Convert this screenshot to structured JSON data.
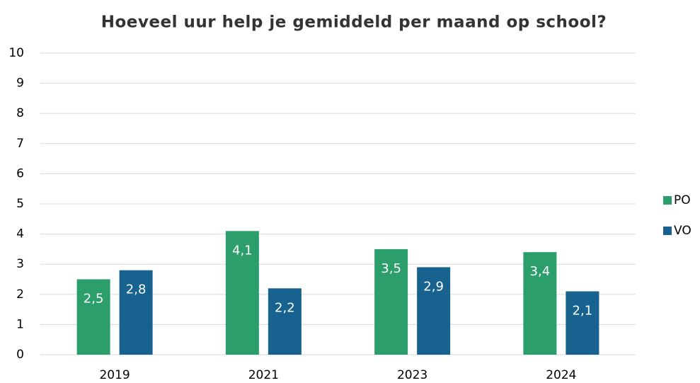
{
  "chart_data": {
    "type": "bar",
    "title": "Hoeveel uur help je gemiddeld per maand op school?",
    "categories": [
      "2019",
      "2021",
      "2023",
      "2024"
    ],
    "series": [
      {
        "name": "PO",
        "color": "#2b9e6b",
        "values": [
          2.5,
          4.1,
          3.5,
          3.4
        ],
        "value_labels": [
          "2,5",
          "4,1",
          "3,5",
          "3,4"
        ]
      },
      {
        "name": "VO",
        "color": "#18628f",
        "values": [
          2.8,
          2.2,
          2.9,
          2.1
        ],
        "value_labels": [
          "2,8",
          "2,2",
          "2,9",
          "2,1"
        ]
      }
    ],
    "ylim": [
      0,
      10
    ],
    "yticks": [
      0,
      1,
      2,
      3,
      4,
      5,
      6,
      7,
      8,
      9,
      10
    ],
    "grid": true,
    "legend": "right"
  }
}
